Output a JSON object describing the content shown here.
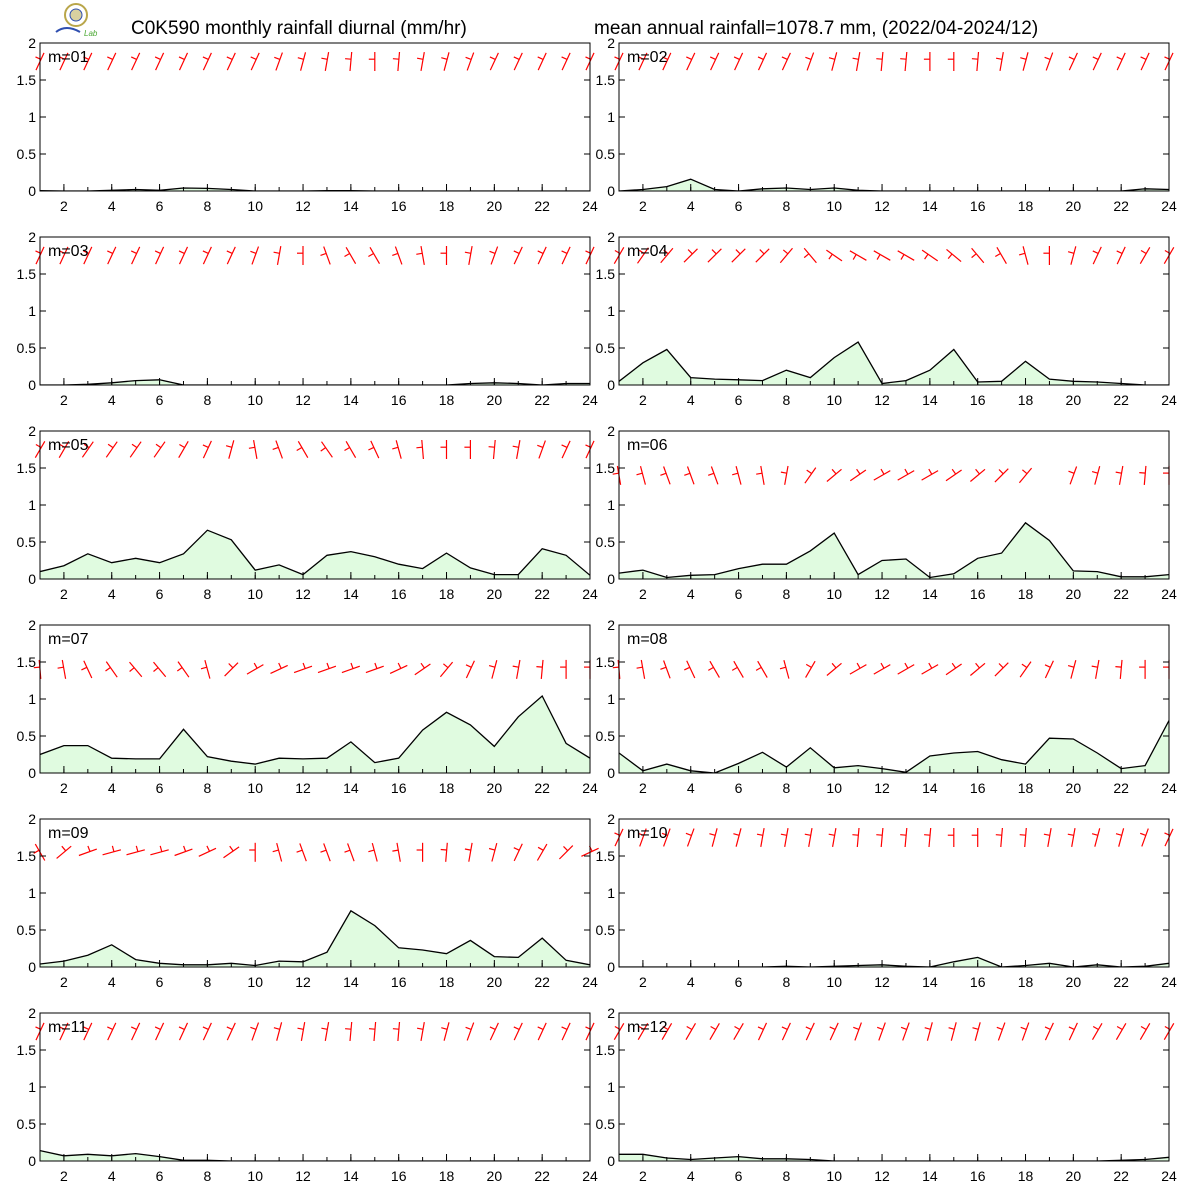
{
  "header": {
    "title_left": "C0K590 monthly rainfall diurnal (mm/hr)",
    "title_right": "mean annual rainfall=1078.7 mm, (2022/04-2024/12)"
  },
  "logo": {
    "line1": "Lab",
    "color_ring": "#b9a64a",
    "color_text": "#2f4fb0",
    "color_lab": "#4aa832"
  },
  "colors": {
    "rain_line": "#000000",
    "rain_fill": "#e0fbe0",
    "wind": "#ff0000",
    "frame": "#000000"
  },
  "chart_data": [
    {
      "type": "area",
      "panel_label": "m=01",
      "x": [
        1,
        2,
        3,
        4,
        5,
        6,
        7,
        8,
        9,
        10,
        11,
        12,
        13,
        14,
        15,
        16,
        17,
        18,
        19,
        20,
        21,
        22,
        23,
        24
      ],
      "values": [
        0.005,
        0.0,
        0.0,
        0.01,
        0.02,
        0.01,
        0.04,
        0.035,
        0.02,
        0.0,
        0.0,
        0.0,
        0.005,
        0.005,
        0.0,
        0.0,
        0.0,
        0.0,
        0.0,
        0.0,
        0.0,
        0.0,
        0.0,
        0.0
      ],
      "ylim": [
        0,
        2
      ],
      "xlim": [
        1,
        24
      ],
      "xticks": [
        2,
        4,
        6,
        8,
        10,
        12,
        14,
        16,
        18,
        20,
        22,
        24
      ],
      "yticks": [
        0,
        0.5,
        1,
        1.5,
        2
      ],
      "wind": {
        "row": "top",
        "dir_deg": [
          205,
          205,
          205,
          205,
          205,
          205,
          205,
          205,
          205,
          205,
          200,
          195,
          190,
          185,
          180,
          185,
          190,
          195,
          200,
          205,
          205,
          205,
          205,
          205
        ]
      }
    },
    {
      "type": "area",
      "panel_label": "m=02",
      "x": [
        1,
        2,
        3,
        4,
        5,
        6,
        7,
        8,
        9,
        10,
        11,
        12,
        13,
        14,
        15,
        16,
        17,
        18,
        19,
        20,
        21,
        22,
        23,
        24
      ],
      "values": [
        0.0,
        0.02,
        0.06,
        0.16,
        0.02,
        0.0,
        0.03,
        0.04,
        0.02,
        0.04,
        0.01,
        0.0,
        0.0,
        0.0,
        0.0,
        0.0,
        0.0,
        0.0,
        0.0,
        0.0,
        0.0,
        0.0,
        0.03,
        0.02
      ],
      "ylim": [
        0,
        2
      ],
      "xlim": [
        1,
        24
      ],
      "xticks": [
        2,
        4,
        6,
        8,
        10,
        12,
        14,
        16,
        18,
        20,
        22,
        24
      ],
      "yticks": [
        0,
        0.5,
        1,
        1.5,
        2
      ],
      "wind": {
        "row": "top",
        "dir_deg": [
          205,
          205,
          205,
          205,
          205,
          205,
          205,
          205,
          200,
          195,
          190,
          185,
          185,
          180,
          180,
          185,
          190,
          195,
          200,
          205,
          205,
          205,
          205,
          205
        ]
      }
    },
    {
      "type": "area",
      "panel_label": "m=03",
      "x": [
        1,
        2,
        3,
        4,
        5,
        6,
        7,
        8,
        9,
        10,
        11,
        12,
        13,
        14,
        15,
        16,
        17,
        18,
        19,
        20,
        21,
        22,
        23,
        24
      ],
      "values": [
        0.0,
        0.0,
        0.01,
        0.03,
        0.06,
        0.07,
        0.0,
        0.0,
        0.0,
        0.0,
        0.0,
        0.0,
        0.0,
        0.0,
        0.0,
        0.0,
        0.0,
        0.0,
        0.02,
        0.03,
        0.02,
        0.0,
        0.02,
        0.02
      ],
      "ylim": [
        0,
        2
      ],
      "xlim": [
        1,
        24
      ],
      "xticks": [
        2,
        4,
        6,
        8,
        10,
        12,
        14,
        16,
        18,
        20,
        22,
        24
      ],
      "yticks": [
        0,
        0.5,
        1,
        1.5,
        2
      ],
      "wind": {
        "row": "top",
        "dir_deg": [
          205,
          205,
          205,
          205,
          205,
          205,
          205,
          205,
          205,
          200,
          190,
          180,
          160,
          150,
          150,
          160,
          170,
          180,
          190,
          200,
          205,
          205,
          205,
          205
        ]
      }
    },
    {
      "type": "area",
      "panel_label": "m=04",
      "x": [
        1,
        2,
        3,
        4,
        5,
        6,
        7,
        8,
        9,
        10,
        11,
        12,
        13,
        14,
        15,
        16,
        17,
        18,
        19,
        20,
        21,
        22,
        23,
        24
      ],
      "values": [
        0.05,
        0.3,
        0.48,
        0.1,
        0.08,
        0.07,
        0.06,
        0.2,
        0.1,
        0.37,
        0.58,
        0.02,
        0.06,
        0.2,
        0.48,
        0.04,
        0.05,
        0.32,
        0.08,
        0.05,
        0.04,
        0.02,
        0.0,
        0.0
      ],
      "ylim": [
        0,
        2
      ],
      "xlim": [
        1,
        24
      ],
      "xticks": [
        2,
        4,
        6,
        8,
        10,
        12,
        14,
        16,
        18,
        20,
        22,
        24
      ],
      "yticks": [
        0,
        0.5,
        1,
        1.5,
        2
      ],
      "wind": {
        "row": "top",
        "dir_deg": [
          210,
          215,
          220,
          225,
          225,
          225,
          225,
          220,
          140,
          125,
          120,
          120,
          120,
          125,
          130,
          140,
          150,
          165,
          180,
          195,
          205,
          205,
          210,
          210
        ]
      }
    },
    {
      "type": "area",
      "panel_label": "m=05",
      "x": [
        1,
        2,
        3,
        4,
        5,
        6,
        7,
        8,
        9,
        10,
        11,
        12,
        13,
        14,
        15,
        16,
        17,
        18,
        19,
        20,
        21,
        22,
        23,
        24
      ],
      "values": [
        0.1,
        0.18,
        0.34,
        0.22,
        0.28,
        0.22,
        0.34,
        0.66,
        0.53,
        0.12,
        0.19,
        0.06,
        0.32,
        0.37,
        0.3,
        0.2,
        0.14,
        0.35,
        0.15,
        0.06,
        0.06,
        0.41,
        0.32,
        0.05
      ],
      "ylim": [
        0,
        2
      ],
      "xlim": [
        1,
        24
      ],
      "xticks": [
        2,
        4,
        6,
        8,
        10,
        12,
        14,
        16,
        18,
        20,
        22,
        24
      ],
      "yticks": [
        0,
        0.5,
        1,
        1.5,
        2
      ],
      "wind": {
        "row": "top",
        "dir_deg": [
          210,
          210,
          215,
          215,
          215,
          215,
          210,
          205,
          195,
          170,
          160,
          150,
          145,
          150,
          155,
          165,
          175,
          180,
          180,
          185,
          190,
          200,
          205,
          205
        ]
      }
    },
    {
      "type": "area",
      "panel_label": "m=06",
      "x": [
        1,
        2,
        3,
        4,
        5,
        6,
        7,
        8,
        9,
        10,
        11,
        12,
        13,
        14,
        15,
        16,
        17,
        18,
        19,
        20,
        21,
        22,
        23,
        24
      ],
      "values": [
        0.08,
        0.12,
        0.02,
        0.05,
        0.06,
        0.14,
        0.2,
        0.2,
        0.38,
        0.62,
        0.06,
        0.25,
        0.27,
        0.02,
        0.07,
        0.28,
        0.35,
        0.76,
        0.52,
        0.11,
        0.1,
        0.03,
        0.03,
        0.06
      ],
      "ylim": [
        0,
        2
      ],
      "xlim": [
        1,
        24
      ],
      "xticks": [
        2,
        4,
        6,
        8,
        10,
        12,
        14,
        16,
        18,
        20,
        22,
        24
      ],
      "yticks": [
        0,
        0.5,
        1,
        1.5,
        2
      ],
      "wind": {
        "row": "mid",
        "dir_deg": [
          170,
          165,
          160,
          160,
          160,
          165,
          170,
          190,
          215,
          230,
          235,
          240,
          240,
          240,
          235,
          230,
          225,
          220,
          0,
          200,
          195,
          190,
          185,
          180
        ]
      }
    },
    {
      "type": "area",
      "panel_label": "m=07",
      "x": [
        1,
        2,
        3,
        4,
        5,
        6,
        7,
        8,
        9,
        10,
        11,
        12,
        13,
        14,
        15,
        16,
        17,
        18,
        19,
        20,
        21,
        22,
        23,
        24
      ],
      "values": [
        0.25,
        0.37,
        0.37,
        0.2,
        0.19,
        0.19,
        0.59,
        0.22,
        0.16,
        0.12,
        0.2,
        0.19,
        0.2,
        0.42,
        0.14,
        0.2,
        0.58,
        0.82,
        0.65,
        0.36,
        0.76,
        1.04,
        0.4,
        0.2
      ],
      "ylim": [
        0,
        2
      ],
      "xlim": [
        1,
        24
      ],
      "xticks": [
        2,
        4,
        6,
        8,
        10,
        12,
        14,
        16,
        18,
        20,
        22,
        24
      ],
      "yticks": [
        0,
        0.5,
        1,
        1.5,
        2
      ],
      "wind": {
        "row": "mid",
        "dir_deg": [
          175,
          170,
          155,
          145,
          140,
          140,
          145,
          165,
          225,
          240,
          245,
          250,
          250,
          250,
          250,
          245,
          235,
          220,
          205,
          195,
          190,
          185,
          180,
          180
        ]
      }
    },
    {
      "type": "area",
      "panel_label": "m=08",
      "x": [
        1,
        2,
        3,
        4,
        5,
        6,
        7,
        8,
        9,
        10,
        11,
        12,
        13,
        14,
        15,
        16,
        17,
        18,
        19,
        20,
        21,
        22,
        23,
        24
      ],
      "values": [
        0.27,
        0.03,
        0.12,
        0.03,
        0.0,
        0.13,
        0.28,
        0.08,
        0.34,
        0.07,
        0.1,
        0.06,
        0.01,
        0.23,
        0.27,
        0.29,
        0.18,
        0.12,
        0.47,
        0.46,
        0.27,
        0.06,
        0.1,
        0.71
      ],
      "ylim": [
        0,
        2
      ],
      "xlim": [
        1,
        24
      ],
      "xticks": [
        2,
        4,
        6,
        8,
        10,
        12,
        14,
        16,
        18,
        20,
        22,
        24
      ],
      "yticks": [
        0,
        0.5,
        1,
        1.5,
        2
      ],
      "wind": {
        "row": "mid",
        "dir_deg": [
          175,
          170,
          160,
          155,
          150,
          150,
          150,
          165,
          210,
          230,
          240,
          240,
          240,
          240,
          235,
          230,
          225,
          215,
          205,
          195,
          190,
          185,
          180,
          180
        ]
      }
    },
    {
      "type": "area",
      "panel_label": "m=09",
      "x": [
        1,
        2,
        3,
        4,
        5,
        6,
        7,
        8,
        9,
        10,
        11,
        12,
        13,
        14,
        15,
        16,
        17,
        18,
        19,
        20,
        21,
        22,
        23,
        24
      ],
      "values": [
        0.04,
        0.08,
        0.16,
        0.3,
        0.1,
        0.05,
        0.03,
        0.03,
        0.05,
        0.02,
        0.08,
        0.07,
        0.2,
        0.76,
        0.56,
        0.26,
        0.23,
        0.18,
        0.36,
        0.14,
        0.13,
        0.39,
        0.09,
        0.03
      ],
      "ylim": [
        0,
        2
      ],
      "xlim": [
        1,
        24
      ],
      "xticks": [
        2,
        4,
        6,
        8,
        10,
        12,
        14,
        16,
        18,
        20,
        22,
        24
      ],
      "yticks": [
        0,
        0.5,
        1,
        1.5,
        2
      ],
      "wind": {
        "row": "low",
        "dir_deg": [
          150,
          230,
          250,
          255,
          255,
          255,
          250,
          245,
          235,
          180,
          165,
          160,
          160,
          160,
          165,
          170,
          180,
          185,
          190,
          195,
          205,
          210,
          225,
          245
        ]
      }
    },
    {
      "type": "area",
      "panel_label": "m=10",
      "x": [
        1,
        2,
        3,
        4,
        5,
        6,
        7,
        8,
        9,
        10,
        11,
        12,
        13,
        14,
        15,
        16,
        17,
        18,
        19,
        20,
        21,
        22,
        23,
        24
      ],
      "values": [
        0.0,
        0.0,
        0.0,
        0.0,
        0.0,
        0.0,
        0.0,
        0.01,
        0.0,
        0.01,
        0.02,
        0.03,
        0.01,
        0.0,
        0.07,
        0.13,
        0.0,
        0.02,
        0.05,
        0.0,
        0.03,
        0.0,
        0.01,
        0.05
      ],
      "ylim": [
        0,
        2
      ],
      "xlim": [
        1,
        24
      ],
      "xticks": [
        2,
        4,
        6,
        8,
        10,
        12,
        14,
        16,
        18,
        20,
        22,
        24
      ],
      "yticks": [
        0,
        0.5,
        1,
        1.5,
        2
      ],
      "wind": {
        "row": "top",
        "dir_deg": [
          205,
          200,
          200,
          200,
          195,
          195,
          190,
          190,
          190,
          190,
          185,
          185,
          185,
          185,
          180,
          180,
          185,
          185,
          190,
          190,
          195,
          195,
          200,
          205
        ]
      }
    },
    {
      "type": "area",
      "panel_label": "m=11",
      "x": [
        1,
        2,
        3,
        4,
        5,
        6,
        7,
        8,
        9,
        10,
        11,
        12,
        13,
        14,
        15,
        16,
        17,
        18,
        19,
        20,
        21,
        22,
        23,
        24
      ],
      "values": [
        0.14,
        0.07,
        0.09,
        0.07,
        0.1,
        0.06,
        0.01,
        0.01,
        0.0,
        0.0,
        0.0,
        0.0,
        0.0,
        0.0,
        0.0,
        0.0,
        0.0,
        0.0,
        0.0,
        0.0,
        0.0,
        0.0,
        0.0,
        0.0
      ],
      "ylim": [
        0,
        2
      ],
      "xlim": [
        1,
        24
      ],
      "xticks": [
        2,
        4,
        6,
        8,
        10,
        12,
        14,
        16,
        18,
        20,
        22,
        24
      ],
      "yticks": [
        0,
        0.5,
        1,
        1.5,
        2
      ],
      "wind": {
        "row": "top",
        "dir_deg": [
          205,
          205,
          205,
          205,
          205,
          205,
          205,
          205,
          205,
          200,
          195,
          190,
          190,
          185,
          185,
          185,
          190,
          195,
          200,
          205,
          205,
          205,
          205,
          205
        ]
      }
    },
    {
      "type": "area",
      "panel_label": "m=12",
      "x": [
        1,
        2,
        3,
        4,
        5,
        6,
        7,
        8,
        9,
        10,
        11,
        12,
        13,
        14,
        15,
        16,
        17,
        18,
        19,
        20,
        21,
        22,
        23,
        24
      ],
      "values": [
        0.09,
        0.09,
        0.04,
        0.02,
        0.04,
        0.06,
        0.03,
        0.03,
        0.02,
        0.0,
        0.0,
        0.0,
        0.0,
        0.0,
        0.0,
        0.0,
        0.0,
        0.0,
        0.0,
        0.0,
        0.0,
        0.01,
        0.02,
        0.05
      ],
      "ylim": [
        0,
        2
      ],
      "xlim": [
        1,
        24
      ],
      "xticks": [
        2,
        4,
        6,
        8,
        10,
        12,
        14,
        16,
        18,
        20,
        22,
        24
      ],
      "yticks": [
        0,
        0.5,
        1,
        1.5,
        2
      ],
      "wind": {
        "row": "top",
        "dir_deg": [
          210,
          210,
          210,
          210,
          210,
          210,
          205,
          205,
          205,
          205,
          200,
          200,
          200,
          195,
          195,
          195,
          200,
          200,
          205,
          205,
          210,
          210,
          210,
          210
        ]
      }
    }
  ]
}
